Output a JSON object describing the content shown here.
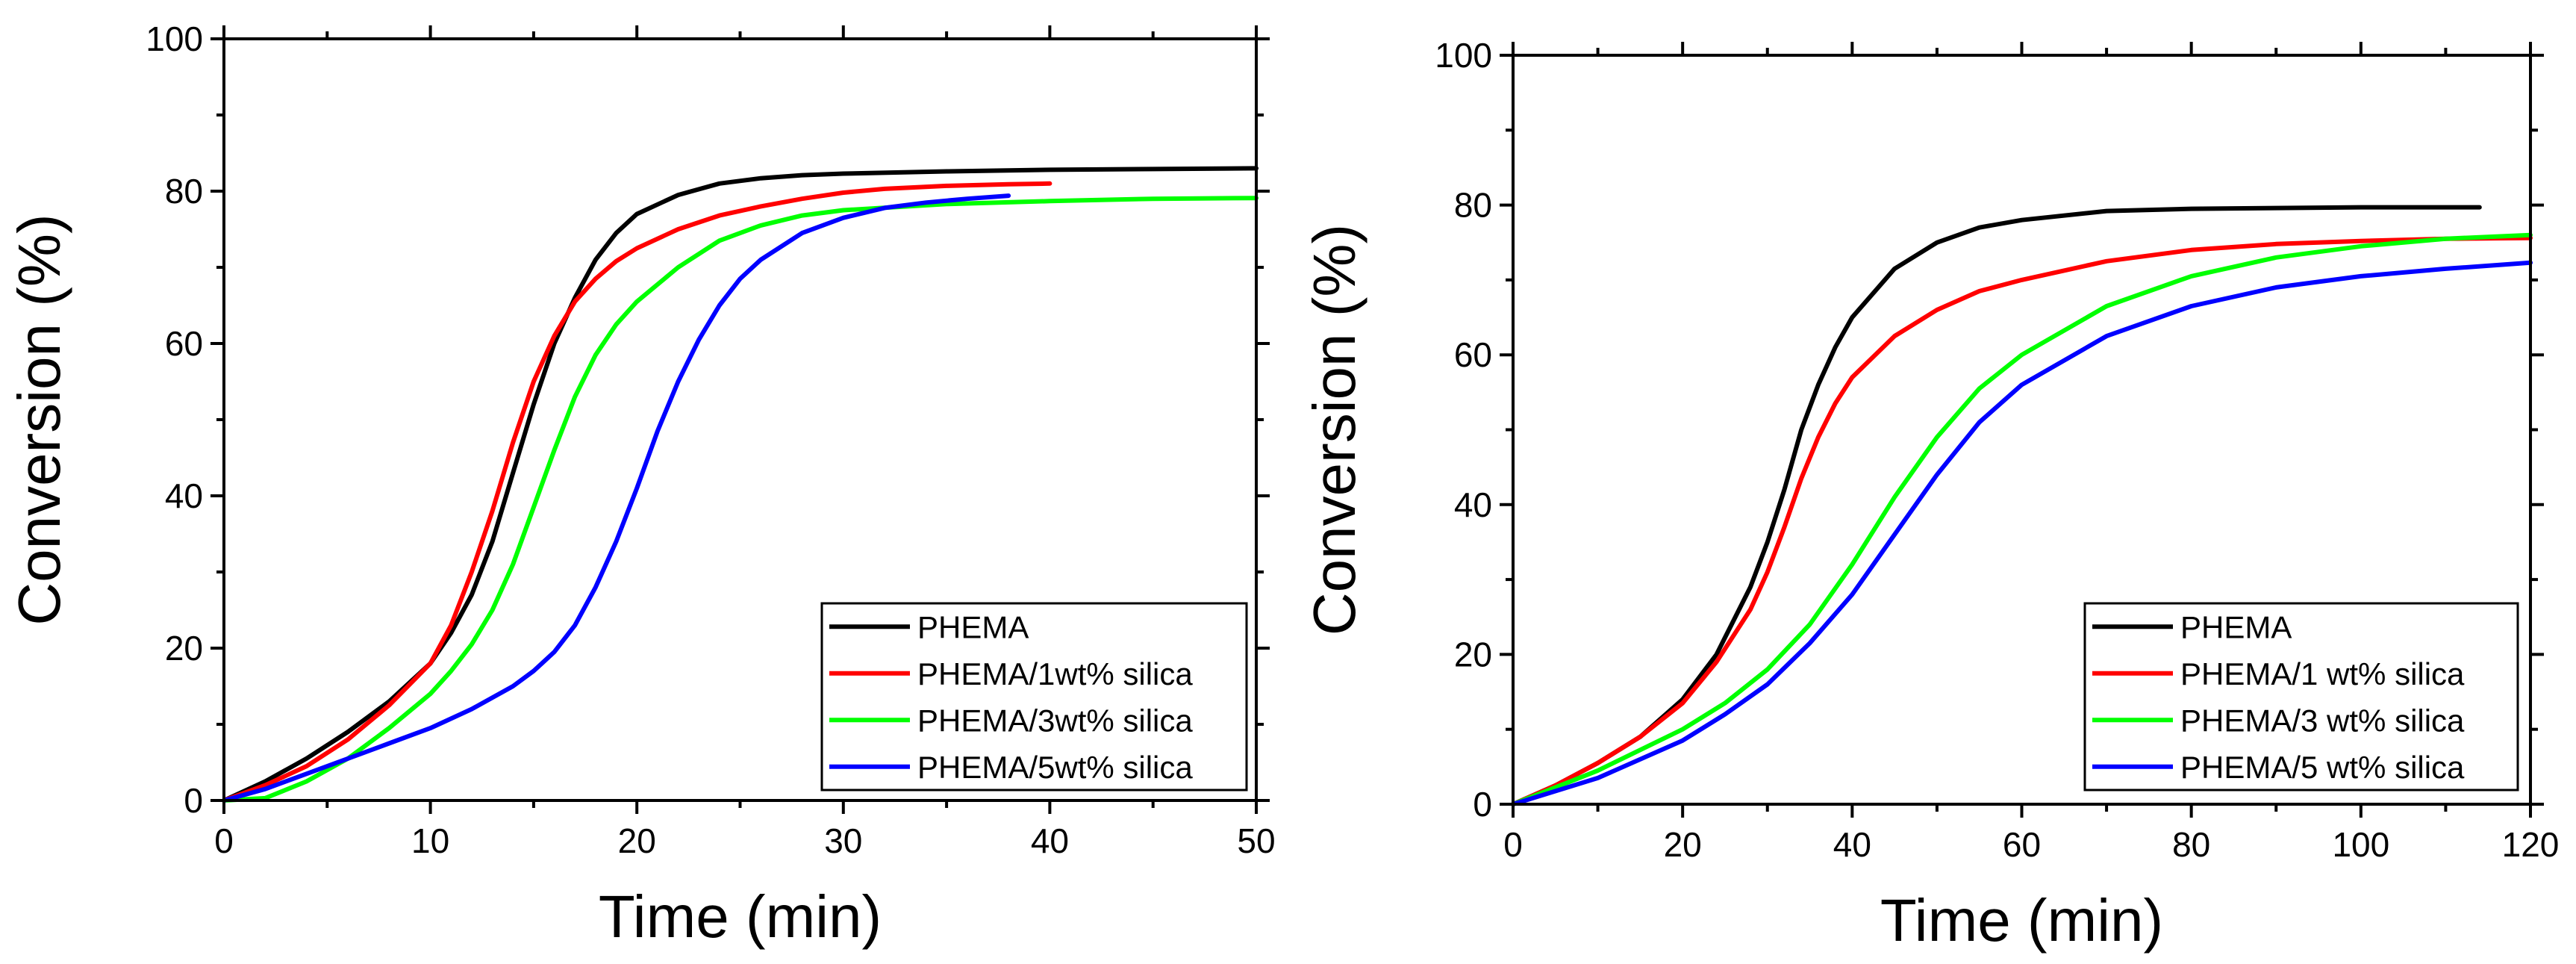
{
  "chart_data": [
    {
      "type": "line",
      "title": "",
      "xlabel": "Time (min)",
      "ylabel": "Conversion (%)",
      "xlim": [
        0,
        50
      ],
      "ylim": [
        0,
        100
      ],
      "xticks": [
        0,
        10,
        20,
        30,
        40,
        50
      ],
      "xtick_labels": [
        "0",
        "10",
        "20",
        "30",
        "40",
        "50"
      ],
      "yticks": [
        0,
        20,
        40,
        60,
        80,
        100
      ],
      "ytick_labels": [
        "0",
        "20",
        "40",
        "60",
        "80",
        "100"
      ],
      "legend_position": "bottom-right",
      "series": [
        {
          "name": "PHEMA",
          "color": "#000000",
          "x": [
            0,
            2,
            4,
            6,
            8,
            10,
            11,
            12,
            13,
            14,
            15,
            16,
            17,
            18,
            19,
            20,
            22,
            24,
            26,
            28,
            30,
            35,
            40,
            45,
            50
          ],
          "y": [
            0,
            2.5,
            5.5,
            9,
            13,
            18,
            22,
            27,
            34,
            43,
            52,
            60,
            66,
            71,
            74.5,
            77,
            79.5,
            81,
            81.7,
            82.1,
            82.3,
            82.6,
            82.8,
            82.9,
            83
          ]
        },
        {
          "name": "PHEMA/1wt% silica",
          "color": "#ff0000",
          "x": [
            0,
            2,
            4,
            6,
            8,
            10,
            11,
            12,
            13,
            14,
            15,
            16,
            17,
            18,
            19,
            20,
            22,
            24,
            26,
            28,
            30,
            32,
            35,
            38,
            40
          ],
          "y": [
            0,
            2,
            4.5,
            8,
            12.5,
            18,
            23,
            30,
            38,
            47,
            55,
            61,
            65.5,
            68.5,
            70.8,
            72.5,
            75,
            76.8,
            78,
            79,
            79.8,
            80.3,
            80.7,
            80.9,
            81
          ]
        },
        {
          "name": "PHEMA/3wt% silica",
          "color": "#00ff00",
          "x": [
            0,
            2,
            4,
            6,
            8,
            10,
            11,
            12,
            13,
            14,
            15,
            16,
            17,
            18,
            19,
            20,
            22,
            24,
            26,
            28,
            30,
            35,
            40,
            45,
            50
          ],
          "y": [
            0,
            0.3,
            2.5,
            5.5,
            9.5,
            14,
            17,
            20.5,
            25,
            31,
            38.5,
            46,
            53,
            58.5,
            62.5,
            65.5,
            70,
            73.5,
            75.5,
            76.8,
            77.5,
            78.3,
            78.7,
            79,
            79.1
          ]
        },
        {
          "name": "PHEMA/5wt% silica",
          "color": "#0000ff",
          "x": [
            0,
            2,
            4,
            6,
            8,
            10,
            12,
            14,
            15,
            16,
            17,
            18,
            19,
            20,
            21,
            22,
            23,
            24,
            25,
            26,
            28,
            30,
            32,
            34,
            36,
            38
          ],
          "y": [
            0,
            1.5,
            3.5,
            5.5,
            7.5,
            9.5,
            12,
            15,
            17,
            19.5,
            23,
            28,
            34,
            41,
            48.5,
            55,
            60.5,
            65,
            68.5,
            71,
            74.5,
            76.5,
            77.8,
            78.5,
            79,
            79.4
          ]
        }
      ]
    },
    {
      "type": "line",
      "title": "",
      "xlabel": "Time (min)",
      "ylabel": "Conversion (%)",
      "xlim": [
        0,
        120
      ],
      "ylim": [
        0,
        100
      ],
      "xticks": [
        0,
        20,
        40,
        60,
        80,
        100,
        120
      ],
      "xtick_labels": [
        "0",
        "20",
        "40",
        "60",
        "80",
        "100",
        "120"
      ],
      "yticks": [
        0,
        20,
        40,
        60,
        80,
        100
      ],
      "ytick_labels": [
        "0",
        "20",
        "40",
        "60",
        "80",
        "100"
      ],
      "legend_position": "bottom-right",
      "series": [
        {
          "name": "PHEMA",
          "color": "#000000",
          "x": [
            0,
            5,
            10,
            15,
            20,
            24,
            28,
            30,
            32,
            34,
            36,
            38,
            40,
            45,
            50,
            55,
            60,
            70,
            80,
            90,
            100,
            114
          ],
          "y": [
            0,
            2.5,
            5.5,
            9,
            14,
            20,
            29,
            35,
            42,
            50,
            56,
            61,
            65,
            71.5,
            75,
            77,
            78,
            79.2,
            79.5,
            79.6,
            79.7,
            79.7
          ]
        },
        {
          "name": "PHEMA/1 wt% silica",
          "color": "#ff0000",
          "x": [
            0,
            5,
            10,
            15,
            20,
            24,
            28,
            30,
            32,
            34,
            36,
            38,
            40,
            45,
            50,
            55,
            60,
            70,
            80,
            90,
            100,
            110,
            120
          ],
          "y": [
            0,
            2.5,
            5.5,
            9,
            13.5,
            19,
            26,
            31,
            37,
            43.5,
            49,
            53.5,
            57,
            62.5,
            66,
            68.5,
            70,
            72.5,
            74,
            74.8,
            75.2,
            75.5,
            75.6
          ]
        },
        {
          "name": "PHEMA/3 wt% silica",
          "color": "#00ff00",
          "x": [
            0,
            10,
            20,
            25,
            30,
            35,
            40,
            45,
            50,
            55,
            60,
            70,
            80,
            90,
            100,
            110,
            120
          ],
          "y": [
            0,
            4.5,
            10,
            13.5,
            18,
            24,
            32,
            41,
            49,
            55.5,
            60,
            66.5,
            70.5,
            73,
            74.5,
            75.5,
            76
          ]
        },
        {
          "name": "PHEMA/5 wt% silica",
          "color": "#0000ff",
          "x": [
            0,
            10,
            20,
            25,
            30,
            35,
            40,
            45,
            50,
            55,
            60,
            70,
            80,
            90,
            100,
            110,
            120
          ],
          "y": [
            0,
            3.5,
            8.5,
            12,
            16,
            21.5,
            28,
            36,
            44,
            51,
            56,
            62.5,
            66.5,
            69,
            70.5,
            71.5,
            72.3
          ]
        }
      ]
    }
  ]
}
